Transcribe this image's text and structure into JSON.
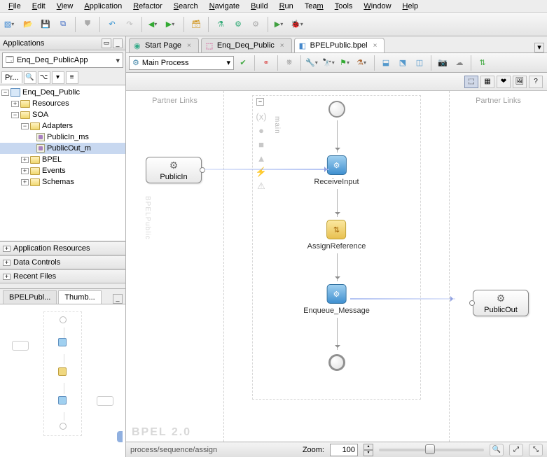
{
  "menu": {
    "items": [
      {
        "u": "F",
        "rest": "ile"
      },
      {
        "u": "E",
        "rest": "dit"
      },
      {
        "u": "V",
        "rest": "iew"
      },
      {
        "u": "A",
        "rest": "pplication"
      },
      {
        "u": "R",
        "rest": "efactor"
      },
      {
        "u": "S",
        "rest": "earch"
      },
      {
        "u": "N",
        "rest": "avigate"
      },
      {
        "u": "B",
        "rest": "uild"
      },
      {
        "u": "R",
        "rest": "un"
      },
      {
        "u": "T",
        "rest": "eam",
        "pre": "Tea",
        "under": "m"
      },
      {
        "u": "T",
        "rest": "ools"
      },
      {
        "u": "W",
        "rest": "indow"
      },
      {
        "u": "H",
        "rest": "elp"
      }
    ]
  },
  "left": {
    "panel_title": "Applications",
    "app_selector": "Enq_Deq_PublicApp",
    "tree": {
      "root": "Enq_Deq_Public",
      "resources": "Resources",
      "soa": "SOA",
      "adapters": "Adapters",
      "publicin": "PublicIn_ms",
      "publicout": "PublicOut_m",
      "bpel": "BPEL",
      "events": "Events",
      "schemas": "Schemas"
    },
    "projects_tab": "Pr...",
    "accordions": [
      "Application Resources",
      "Data Controls",
      "Recent Files"
    ],
    "thumb_tabs": {
      "a": "BPELPubl...",
      "b": "Thumb..."
    }
  },
  "editor": {
    "tabs": [
      {
        "label": "Start Page",
        "active": false,
        "icon": "globe"
      },
      {
        "label": "Enq_Deq_Public",
        "active": false,
        "icon": "composite"
      },
      {
        "label": "BPELPublic.bpel",
        "active": true,
        "icon": "bpel"
      }
    ],
    "process_combo": "Main Process",
    "partner_links": "Partner Links",
    "nodes": {
      "receive": "ReceiveInput",
      "assign": "AssignReference",
      "enqueue": "Enqueue_Message",
      "publicin": "PublicIn",
      "publicout": "PublicOut"
    },
    "main_label": "main",
    "bpel_label": "BPELPublic",
    "bpel_version": "BPEL 2.0"
  },
  "status": {
    "path": "process/sequence/assign",
    "zoom_label": "Zoom:",
    "zoom_value": "100",
    "zoom_thumb_percent": 44
  },
  "colors": {
    "node_blue": "#4090d0",
    "node_yellow": "#e8c050",
    "selection": "#c8d8f0"
  }
}
